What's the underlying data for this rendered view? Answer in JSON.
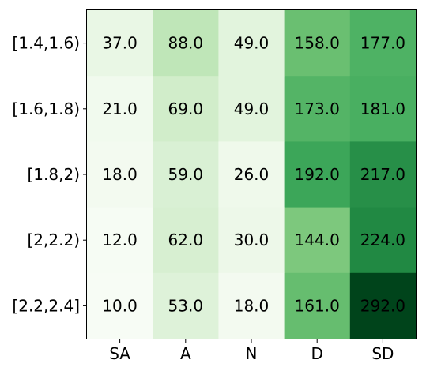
{
  "chart_data": {
    "type": "heatmap",
    "title": "",
    "xlabel": "",
    "ylabel": "",
    "x_categories": [
      "SA",
      "A",
      "N",
      "D",
      "SD"
    ],
    "y_categories": [
      "[1.4,1.6)",
      "[1.6,1.8)",
      "[1.8,2)",
      "[2,2.2)",
      "[2.2,2.4]"
    ],
    "values": [
      [
        37,
        88,
        49,
        158,
        177
      ],
      [
        21,
        69,
        49,
        173,
        181
      ],
      [
        18,
        59,
        26,
        192,
        217
      ],
      [
        12,
        62,
        30,
        144,
        224
      ],
      [
        10,
        53,
        18,
        161,
        292
      ]
    ],
    "value_labels": [
      [
        "37.0",
        "88.0",
        "49.0",
        "158.0",
        "177.0"
      ],
      [
        "21.0",
        "69.0",
        "49.0",
        "173.0",
        "181.0"
      ],
      [
        "18.0",
        "59.0",
        "26.0",
        "192.0",
        "217.0"
      ],
      [
        "12.0",
        "62.0",
        "30.0",
        "144.0",
        "224.0"
      ],
      [
        "10.0",
        "53.0",
        "18.0",
        "161.0",
        "292.0"
      ]
    ],
    "colormap": "Greens",
    "color_range": [
      10,
      292
    ],
    "colorbar": false
  }
}
